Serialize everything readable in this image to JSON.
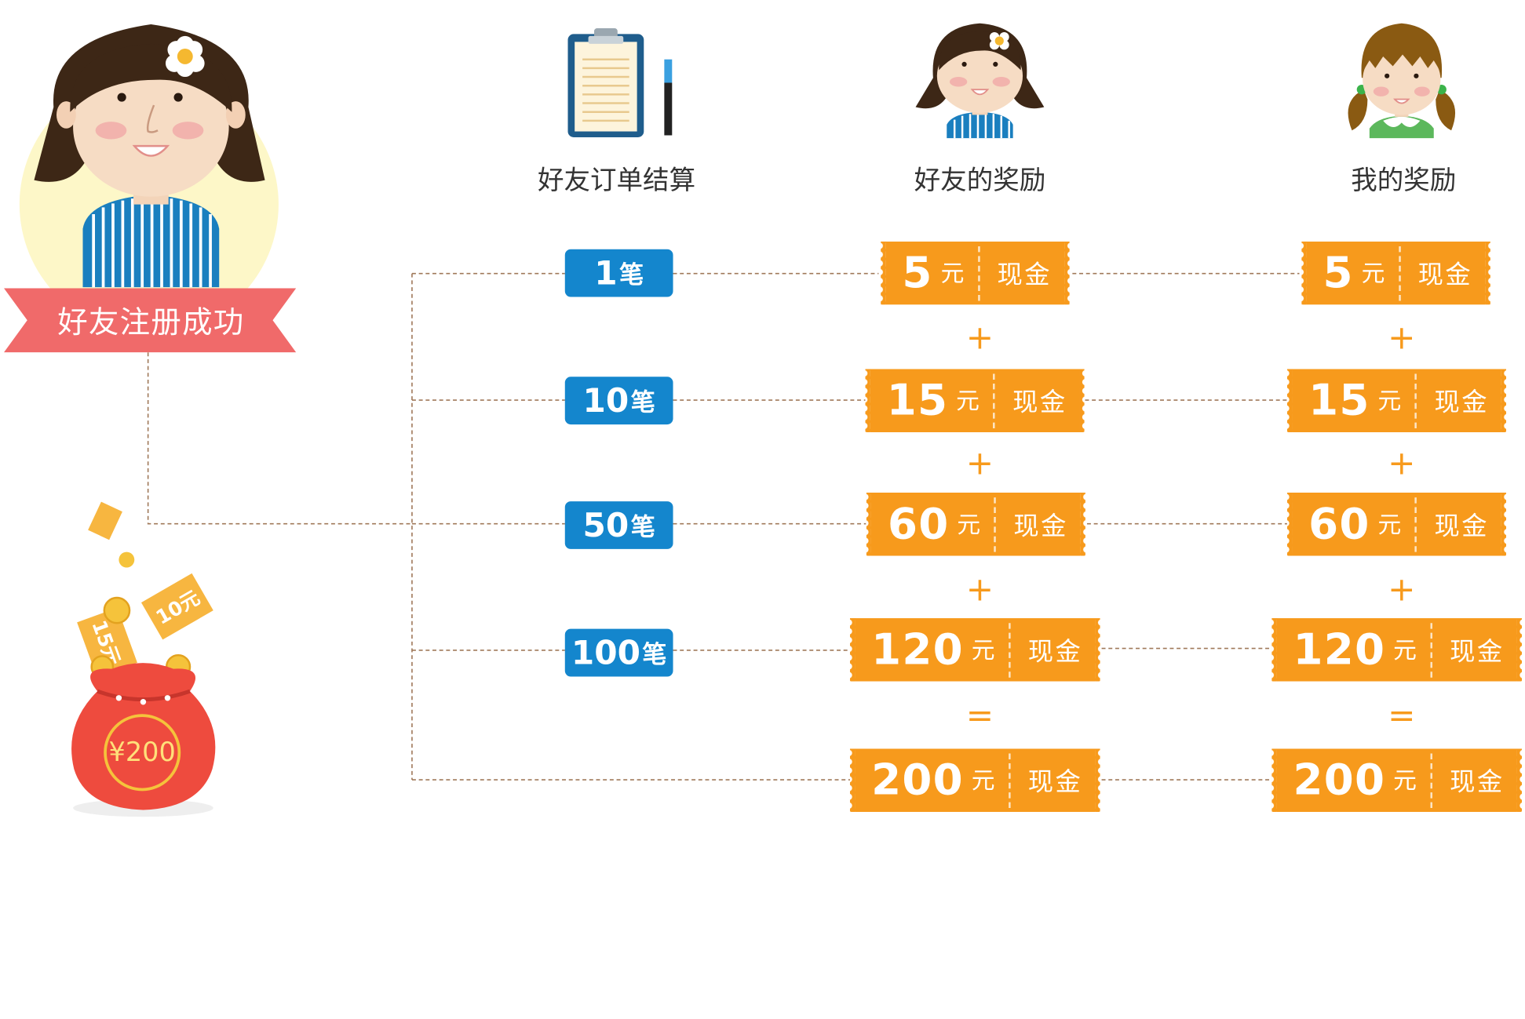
{
  "banner": {
    "label": "好友注册成功"
  },
  "bag": {
    "label": "¥200"
  },
  "flying_bills": [
    "15元",
    "10元"
  ],
  "columns": {
    "orders": "好友订单结算",
    "friend_reward": "好友的奖励",
    "my_reward": "我的奖励"
  },
  "orders": [
    {
      "count": "1",
      "unit": "笔"
    },
    {
      "count": "10",
      "unit": "笔"
    },
    {
      "count": "50",
      "unit": "笔"
    },
    {
      "count": "100",
      "unit": "笔"
    }
  ],
  "friend_rewards": [
    {
      "amount": "5",
      "unit": "元",
      "type": "现金"
    },
    {
      "amount": "15",
      "unit": "元",
      "type": "现金"
    },
    {
      "amount": "60",
      "unit": "元",
      "type": "现金"
    },
    {
      "amount": "120",
      "unit": "元",
      "type": "现金"
    },
    {
      "amount": "200",
      "unit": "元",
      "type": "现金"
    }
  ],
  "my_rewards": [
    {
      "amount": "5",
      "unit": "元",
      "type": "现金"
    },
    {
      "amount": "15",
      "unit": "元",
      "type": "现金"
    },
    {
      "amount": "60",
      "unit": "元",
      "type": "现金"
    },
    {
      "amount": "120",
      "unit": "元",
      "type": "现金"
    },
    {
      "amount": "200",
      "unit": "元",
      "type": "现金"
    }
  ],
  "operators": [
    "+",
    "+",
    "+",
    "="
  ],
  "colors": {
    "ticket": "#f79a1c",
    "pill": "#1486cd",
    "banner": "#f06a6a",
    "connector": "#a0795a"
  }
}
